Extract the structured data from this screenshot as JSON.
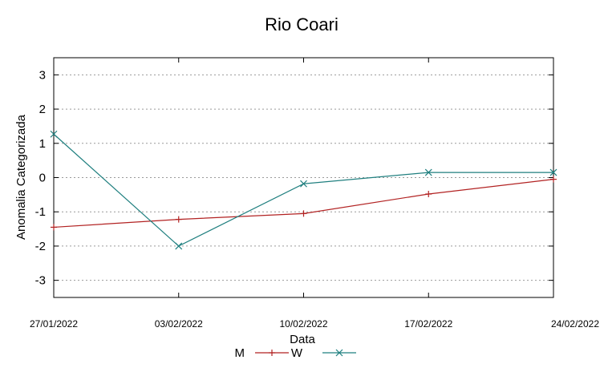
{
  "chart_data": {
    "type": "line",
    "title": "Rio Coari",
    "xlabel": "Data",
    "ylabel": "Anomalia Categorizada",
    "categories": [
      "27/01/2022",
      "03/02/2022",
      "10/02/2022",
      "17/02/2022",
      "24/02/2022"
    ],
    "yticks": [
      "3",
      "2",
      "1",
      "0",
      "-1",
      "-2",
      "-3"
    ],
    "ylim": [
      -3.5,
      3.5
    ],
    "grid": "horizontal dotted",
    "legend_position": "bottom-center",
    "series": [
      {
        "name": "M",
        "color": "#b22222",
        "marker": "plus",
        "values": [
          -1.45,
          -1.22,
          -1.05,
          -0.48,
          -0.05
        ]
      },
      {
        "name": "W",
        "color": "#1f7f7f",
        "marker": "x",
        "values": [
          1.27,
          -2.0,
          -0.18,
          0.15,
          0.15
        ]
      }
    ]
  }
}
